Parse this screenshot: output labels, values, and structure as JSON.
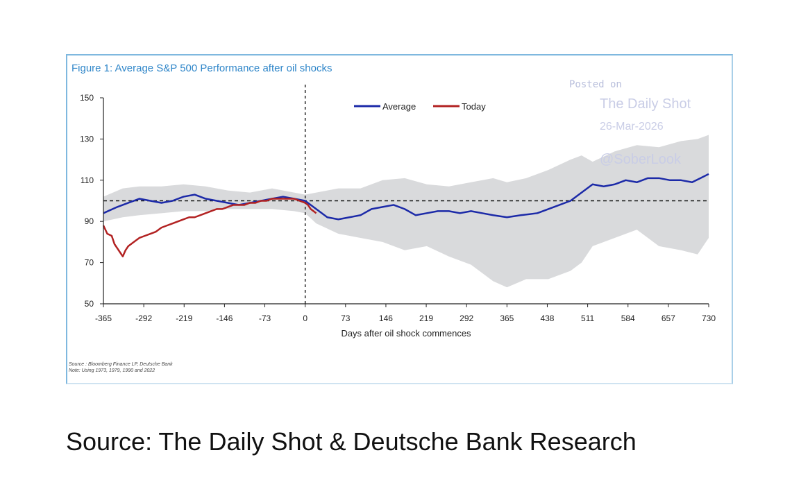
{
  "figure": {
    "title": "Figure 1: Average S&P 500 Performance after oil shocks",
    "source_line": "Source : Bloomberg Finance LP, Deutsche Bank",
    "note_line": "Note: Using 1973, 1979, 1990 and 2022"
  },
  "watermark": {
    "posted": "Posted on",
    "name": "The Daily Shot",
    "date": "26-Mar-2026",
    "handle": "@SoberLook"
  },
  "caption": "Source: The Daily Shot & Deutsche Bank Research",
  "colors": {
    "average": "#1c2aa8",
    "today": "#b22222",
    "band": "#d9dadc",
    "reference": "#111111"
  },
  "chart_data": {
    "type": "line",
    "title": "Figure 1: Average S&P 500 Performance after oil shocks",
    "xlabel": "Days after oil shock commences",
    "ylabel": "",
    "xlim": [
      -365,
      730
    ],
    "ylim": [
      50,
      150
    ],
    "xticks": [
      -365,
      -292,
      -219,
      -146,
      -73,
      0,
      73,
      146,
      219,
      292,
      365,
      438,
      511,
      584,
      657,
      730
    ],
    "yticks": [
      50,
      70,
      90,
      110,
      130,
      150
    ],
    "reference_line_y": 100,
    "event_line_x": 0,
    "legend": [
      "Average",
      "Today"
    ],
    "series": [
      {
        "name": "Average",
        "x": [
          -365,
          -340,
          -320,
          -300,
          -280,
          -260,
          -240,
          -220,
          -200,
          -180,
          -160,
          -140,
          -120,
          -100,
          -80,
          -60,
          -40,
          -20,
          0,
          20,
          40,
          60,
          80,
          100,
          120,
          140,
          160,
          180,
          200,
          220,
          240,
          260,
          280,
          300,
          320,
          340,
          365,
          390,
          420,
          450,
          480,
          500,
          520,
          540,
          560,
          580,
          600,
          620,
          640,
          660,
          680,
          700,
          715,
          730
        ],
        "values": [
          94,
          97,
          99,
          101,
          100,
          99,
          100,
          102,
          103,
          101,
          100,
          99,
          98,
          99,
          100,
          101,
          102,
          101,
          100,
          96,
          92,
          91,
          92,
          93,
          96,
          97,
          98,
          96,
          93,
          94,
          95,
          95,
          94,
          95,
          94,
          93,
          92,
          93,
          94,
          97,
          100,
          104,
          108,
          107,
          108,
          110,
          109,
          111,
          111,
          110,
          110,
          109,
          111,
          113
        ]
      },
      {
        "name": "Today",
        "x": [
          -365,
          -358,
          -350,
          -345,
          -340,
          -335,
          -330,
          -325,
          -320,
          -310,
          -300,
          -290,
          -280,
          -270,
          -260,
          -250,
          -240,
          -230,
          -220,
          -210,
          -200,
          -190,
          -180,
          -170,
          -160,
          -150,
          -140,
          -130,
          -120,
          -110,
          -100,
          -90,
          -80,
          -70,
          -60,
          -50,
          -40,
          -30,
          -20,
          -10,
          0,
          5,
          10,
          15,
          20
        ],
        "values": [
          88,
          84,
          83,
          79,
          77,
          75,
          73,
          76,
          78,
          80,
          82,
          83,
          84,
          85,
          87,
          88,
          89,
          90,
          91,
          92,
          92,
          93,
          94,
          95,
          96,
          96,
          97,
          98,
          98,
          98,
          99,
          99,
          100,
          100,
          101,
          101,
          101,
          101,
          101,
          100,
          99,
          98,
          96,
          95,
          94
        ]
      },
      {
        "name": "Range",
        "x": [
          -365,
          -330,
          -300,
          -260,
          -220,
          -180,
          -140,
          -100,
          -60,
          -20,
          0,
          20,
          60,
          100,
          140,
          180,
          220,
          260,
          300,
          340,
          365,
          400,
          440,
          480,
          500,
          520,
          560,
          600,
          640,
          680,
          710,
          730
        ],
        "upper": [
          102,
          106,
          107,
          107,
          108,
          107,
          105,
          104,
          106,
          104,
          103,
          104,
          106,
          106,
          110,
          111,
          108,
          107,
          109,
          111,
          109,
          111,
          115,
          120,
          122,
          119,
          124,
          127,
          126,
          129,
          130,
          132
        ],
        "lower": [
          90,
          92,
          93,
          94,
          95,
          95,
          96,
          96,
          96,
          95,
          94,
          89,
          84,
          82,
          80,
          76,
          78,
          73,
          69,
          61,
          58,
          62,
          62,
          66,
          70,
          78,
          82,
          86,
          78,
          76,
          74,
          82
        ]
      }
    ]
  }
}
